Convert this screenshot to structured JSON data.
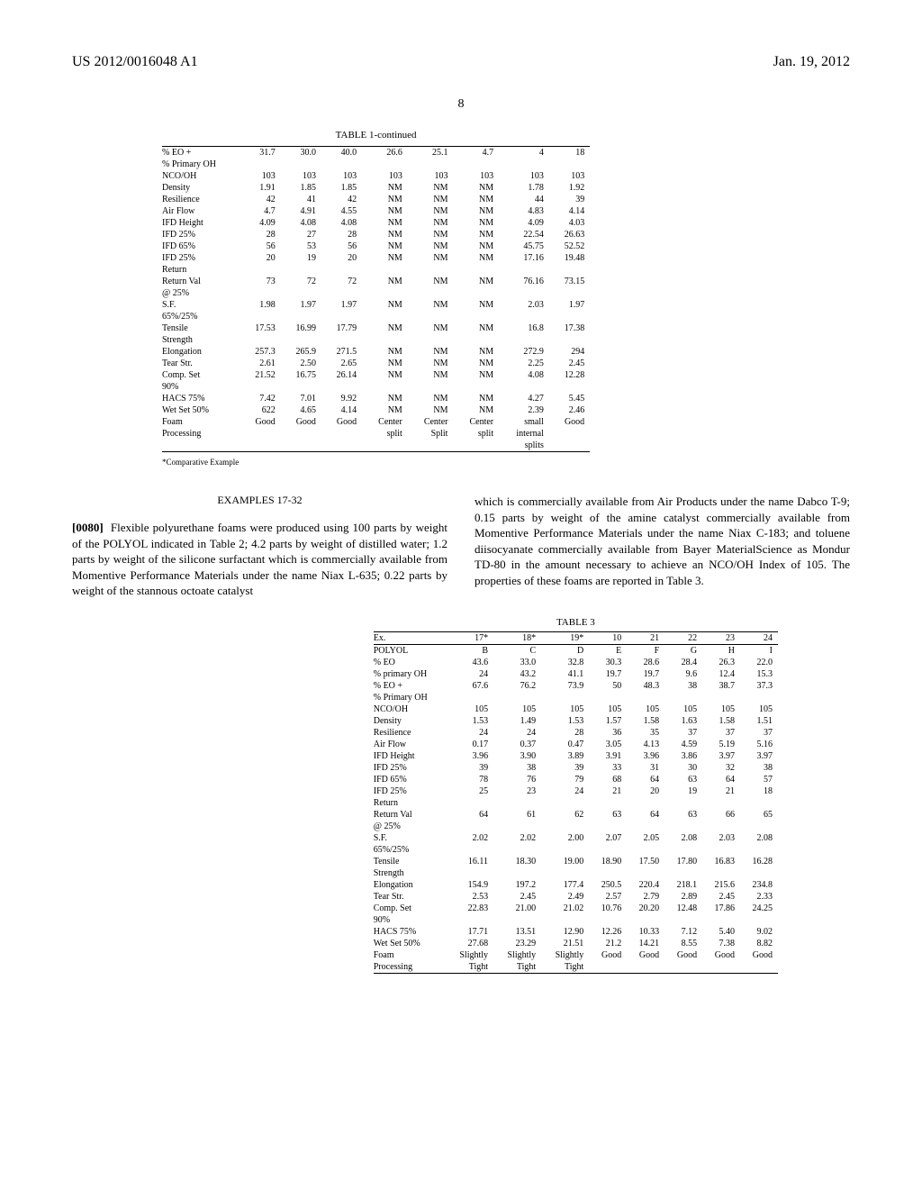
{
  "header": {
    "left": "US 2012/0016048 A1",
    "right": "Jan. 19, 2012"
  },
  "page_number": "8",
  "table1": {
    "caption": "TABLE 1-continued",
    "rows": [
      {
        "label": "% EO +",
        "v": [
          "31.7",
          "30.0",
          "40.0",
          "26.6",
          "25.1",
          "4.7",
          "4",
          "18"
        ]
      },
      {
        "label": "% Primary OH",
        "v": [
          "",
          "",
          "",
          "",
          "",
          "",
          "",
          ""
        ]
      },
      {
        "label": "NCO/OH",
        "v": [
          "103",
          "103",
          "103",
          "103",
          "103",
          "103",
          "103",
          "103"
        ]
      },
      {
        "label": "Density",
        "v": [
          "1.91",
          "1.85",
          "1.85",
          "NM",
          "NM",
          "NM",
          "1.78",
          "1.92"
        ]
      },
      {
        "label": "Resilience",
        "v": [
          "42",
          "41",
          "42",
          "NM",
          "NM",
          "NM",
          "44",
          "39"
        ]
      },
      {
        "label": "Air Flow",
        "v": [
          "4.7",
          "4.91",
          "4.55",
          "NM",
          "NM",
          "NM",
          "4.83",
          "4.14"
        ]
      },
      {
        "label": "IFD Height",
        "v": [
          "4.09",
          "4.08",
          "4.08",
          "NM",
          "NM",
          "NM",
          "4.09",
          "4.03"
        ]
      },
      {
        "label": "IFD 25%",
        "v": [
          "28",
          "27",
          "28",
          "NM",
          "NM",
          "NM",
          "22.54",
          "26.63"
        ]
      },
      {
        "label": "IFD 65%",
        "v": [
          "56",
          "53",
          "56",
          "NM",
          "NM",
          "NM",
          "45.75",
          "52.52"
        ]
      },
      {
        "label": "IFD 25%",
        "v": [
          "20",
          "19",
          "20",
          "NM",
          "NM",
          "NM",
          "17.16",
          "19.48"
        ]
      },
      {
        "label": "Return",
        "v": [
          "",
          "",
          "",
          "",
          "",
          "",
          "",
          ""
        ]
      },
      {
        "label": "Return Val",
        "v": [
          "73",
          "72",
          "72",
          "NM",
          "NM",
          "NM",
          "76.16",
          "73.15"
        ]
      },
      {
        "label": "@ 25%",
        "v": [
          "",
          "",
          "",
          "",
          "",
          "",
          "",
          ""
        ]
      },
      {
        "label": "S.F.",
        "v": [
          "1.98",
          "1.97",
          "1.97",
          "NM",
          "NM",
          "NM",
          "2.03",
          "1.97"
        ]
      },
      {
        "label": "65%/25%",
        "v": [
          "",
          "",
          "",
          "",
          "",
          "",
          "",
          ""
        ]
      },
      {
        "label": "Tensile",
        "v": [
          "17.53",
          "16.99",
          "17.79",
          "NM",
          "NM",
          "NM",
          "16.8",
          "17.38"
        ]
      },
      {
        "label": "Strength",
        "v": [
          "",
          "",
          "",
          "",
          "",
          "",
          "",
          ""
        ]
      },
      {
        "label": "Elongation",
        "v": [
          "257.3",
          "265.9",
          "271.5",
          "NM",
          "NM",
          "NM",
          "272.9",
          "294"
        ]
      },
      {
        "label": "Tear Str.",
        "v": [
          "2.61",
          "2.50",
          "2.65",
          "NM",
          "NM",
          "NM",
          "2.25",
          "2.45"
        ]
      },
      {
        "label": "Comp. Set",
        "v": [
          "21.52",
          "16.75",
          "26.14",
          "NM",
          "NM",
          "NM",
          "4.08",
          "12.28"
        ]
      },
      {
        "label": "90%",
        "v": [
          "",
          "",
          "",
          "",
          "",
          "",
          "",
          ""
        ]
      },
      {
        "label": "HACS 75%",
        "v": [
          "7.42",
          "7.01",
          "9.92",
          "NM",
          "NM",
          "NM",
          "4.27",
          "5.45"
        ]
      },
      {
        "label": "Wet Set 50%",
        "v": [
          "622",
          "4.65",
          "4.14",
          "NM",
          "NM",
          "NM",
          "2.39",
          "2.46"
        ]
      },
      {
        "label": "Foam",
        "v": [
          "Good",
          "Good",
          "Good",
          "Center",
          "Center",
          "Center",
          "small",
          "Good"
        ]
      },
      {
        "label": "Processing",
        "v": [
          "",
          "",
          "",
          "split",
          "Split",
          "split",
          "internal",
          ""
        ]
      },
      {
        "label": "",
        "v": [
          "",
          "",
          "",
          "",
          "",
          "",
          "splits",
          ""
        ]
      }
    ],
    "footnote": "*Comparative Example"
  },
  "section_title": "EXAMPLES 17-32",
  "paragraph": {
    "num": "[0080]",
    "left": "Flexible polyurethane foams were produced using 100 parts by weight of the POLYOL indicated in Table 2; 4.2 parts by weight of distilled water; 1.2 parts by weight of the silicone surfactant which is commercially available from Momentive Performance Materials under the name Niax L-635; 0.22 parts by weight of the stannous octoate catalyst",
    "right": "which is commercially available from Air Products under the name Dabco T-9; 0.15 parts by weight of the amine catalyst commercially available from Momentive Performance Materials under the name Niax C-183; and toluene diisocyanate commercially available from Bayer MaterialScience as Mondur TD-80 in the amount necessary to achieve an NCO/OH Index of 105. The properties of these foams are reported in Table 3."
  },
  "table3": {
    "caption": "TABLE 3",
    "header": [
      "Ex.",
      "17*",
      "18*",
      "19*",
      "10",
      "21",
      "22",
      "23",
      "24"
    ],
    "rows": [
      {
        "label": "POLYOL",
        "v": [
          "B",
          "C",
          "D",
          "E",
          "F",
          "G",
          "H",
          "I"
        ]
      },
      {
        "label": "% EO",
        "v": [
          "43.6",
          "33.0",
          "32.8",
          "30.3",
          "28.6",
          "28.4",
          "26.3",
          "22.0"
        ]
      },
      {
        "label": "% primary OH",
        "v": [
          "24",
          "43.2",
          "41.1",
          "19.7",
          "19.7",
          "9.6",
          "12.4",
          "15.3"
        ]
      },
      {
        "label": "% EO +",
        "v": [
          "67.6",
          "76.2",
          "73.9",
          "50",
          "48.3",
          "38",
          "38.7",
          "37.3"
        ]
      },
      {
        "label": "% Primary OH",
        "v": [
          "",
          "",
          "",
          "",
          "",
          "",
          "",
          ""
        ]
      },
      {
        "label": "NCO/OH",
        "v": [
          "105",
          "105",
          "105",
          "105",
          "105",
          "105",
          "105",
          "105"
        ]
      },
      {
        "label": "Density",
        "v": [
          "1.53",
          "1.49",
          "1.53",
          "1.57",
          "1.58",
          "1.63",
          "1.58",
          "1.51"
        ]
      },
      {
        "label": "Resilience",
        "v": [
          "24",
          "24",
          "28",
          "36",
          "35",
          "37",
          "37",
          "37"
        ]
      },
      {
        "label": "Air Flow",
        "v": [
          "0.17",
          "0.37",
          "0.47",
          "3.05",
          "4.13",
          "4.59",
          "5.19",
          "5.16"
        ]
      },
      {
        "label": "IFD Height",
        "v": [
          "3.96",
          "3.90",
          "3.89",
          "3.91",
          "3.96",
          "3.86",
          "3.97",
          "3.97"
        ]
      },
      {
        "label": "IFD 25%",
        "v": [
          "39",
          "38",
          "39",
          "33",
          "31",
          "30",
          "32",
          "38"
        ]
      },
      {
        "label": "IFD 65%",
        "v": [
          "78",
          "76",
          "79",
          "68",
          "64",
          "63",
          "64",
          "57"
        ]
      },
      {
        "label": "IFD 25%",
        "v": [
          "25",
          "23",
          "24",
          "21",
          "20",
          "19",
          "21",
          "18"
        ]
      },
      {
        "label": "Return",
        "v": [
          "",
          "",
          "",
          "",
          "",
          "",
          "",
          ""
        ]
      },
      {
        "label": "Return Val",
        "v": [
          "64",
          "61",
          "62",
          "63",
          "64",
          "63",
          "66",
          "65"
        ]
      },
      {
        "label": "@ 25%",
        "v": [
          "",
          "",
          "",
          "",
          "",
          "",
          "",
          ""
        ]
      },
      {
        "label": "S.F.",
        "v": [
          "2.02",
          "2.02",
          "2.00",
          "2.07",
          "2.05",
          "2.08",
          "2.03",
          "2.08"
        ]
      },
      {
        "label": "65%/25%",
        "v": [
          "",
          "",
          "",
          "",
          "",
          "",
          "",
          ""
        ]
      },
      {
        "label": "Tensile",
        "v": [
          "16.11",
          "18.30",
          "19.00",
          "18.90",
          "17.50",
          "17.80",
          "16.83",
          "16.28"
        ]
      },
      {
        "label": "Strength",
        "v": [
          "",
          "",
          "",
          "",
          "",
          "",
          "",
          ""
        ]
      },
      {
        "label": "Elongation",
        "v": [
          "154.9",
          "197.2",
          "177.4",
          "250.5",
          "220.4",
          "218.1",
          "215.6",
          "234.8"
        ]
      },
      {
        "label": "Tear Str.",
        "v": [
          "2.53",
          "2.45",
          "2.49",
          "2.57",
          "2.79",
          "2.89",
          "2.45",
          "2.33"
        ]
      },
      {
        "label": "Comp. Set",
        "v": [
          "22.83",
          "21.00",
          "21.02",
          "10.76",
          "20.20",
          "12.48",
          "17.86",
          "24.25"
        ]
      },
      {
        "label": "90%",
        "v": [
          "",
          "",
          "",
          "",
          "",
          "",
          "",
          ""
        ]
      },
      {
        "label": "HACS 75%",
        "v": [
          "17.71",
          "13.51",
          "12.90",
          "12.26",
          "10.33",
          "7.12",
          "5.40",
          "9.02"
        ]
      },
      {
        "label": "Wet Set 50%",
        "v": [
          "27.68",
          "23.29",
          "21.51",
          "21.2",
          "14.21",
          "8.55",
          "7.38",
          "8.82"
        ]
      },
      {
        "label": "Foam",
        "v": [
          "Slightly",
          "Slightly",
          "Slightly",
          "Good",
          "Good",
          "Good",
          "Good",
          "Good"
        ]
      },
      {
        "label": "Processing",
        "v": [
          "Tight",
          "Tight",
          "Tight",
          "",
          "",
          "",
          "",
          ""
        ]
      }
    ]
  }
}
